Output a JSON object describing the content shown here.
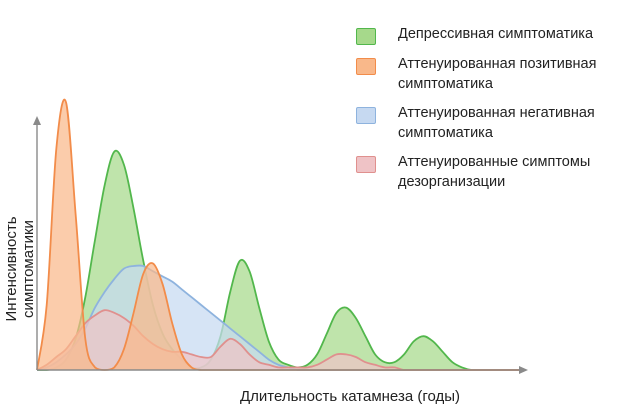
{
  "chart_data": {
    "type": "area",
    "xlabel": "Длительность катамнеза (годы)",
    "ylabel": "Интенсивность симптоматики",
    "xlim": [
      0,
      100
    ],
    "ylim": [
      0,
      100
    ],
    "legend_position": "top-right",
    "x": [
      0,
      2,
      4,
      6,
      8,
      10,
      12,
      14,
      16,
      18,
      20,
      22,
      24,
      26,
      28,
      30,
      32,
      34,
      36,
      38,
      40,
      42,
      44,
      46,
      48,
      50,
      52,
      54,
      56,
      58,
      60,
      62,
      64,
      66,
      68,
      70,
      72,
      74,
      76,
      78,
      80,
      82,
      84,
      86,
      88,
      90,
      92,
      94,
      96,
      98,
      100
    ],
    "series": [
      {
        "name": "Депрессивная симптоматика",
        "color": "#52b74c",
        "fill": "#a6d98b",
        "values": [
          0,
          0,
          1,
          4,
          12,
          28,
          50,
          71,
          84,
          79,
          62,
          42,
          25,
          14,
          8,
          4,
          1,
          1,
          4,
          13,
          30,
          42,
          38,
          24,
          11,
          4,
          2,
          1,
          2,
          6,
          14,
          22,
          24,
          20,
          13,
          6,
          3,
          3,
          6,
          11,
          13,
          11,
          7,
          3,
          1,
          0,
          0,
          0,
          0,
          0,
          0
        ]
      },
      {
        "name": "Аттенуированная позитивная симптоматика",
        "color": "#f28c4a",
        "fill": "#f9b88a",
        "values": [
          0,
          25,
          85,
          103,
          60,
          12,
          1,
          0,
          1,
          8,
          22,
          37,
          41,
          33,
          18,
          6,
          1,
          0,
          0,
          0,
          0,
          0,
          0,
          0,
          0,
          0,
          0,
          0,
          0,
          0,
          0,
          0,
          0,
          0,
          0,
          0,
          0,
          0,
          0,
          0,
          0,
          0,
          0,
          0,
          0,
          0,
          0,
          0,
          0,
          0,
          0
        ]
      },
      {
        "name": "Аттенуированная негативная симптоматика",
        "color": "#8eb3de",
        "fill": "#c6d9f1",
        "values": [
          0,
          1,
          3,
          6,
          10,
          16,
          24,
          30,
          35,
          39,
          40,
          40,
          38,
          36,
          34,
          31,
          28,
          25,
          22,
          19,
          16,
          13,
          10,
          7,
          4,
          2,
          1,
          0,
          0,
          0,
          0,
          0,
          0,
          0,
          0,
          0,
          0,
          0,
          0,
          0,
          0,
          0,
          0,
          0,
          0,
          0,
          0,
          0,
          0,
          0,
          0
        ]
      },
      {
        "name": "Аттенуированные симптомы дезорганизации",
        "color": "#e0908e",
        "fill": "#efc3c6",
        "values": [
          0,
          2,
          5,
          8,
          13,
          18,
          21,
          23,
          22,
          20,
          17,
          13,
          10,
          8,
          7,
          7,
          6,
          5,
          5,
          9,
          12,
          10,
          6,
          3,
          2,
          1,
          1,
          1,
          1,
          2,
          4,
          6,
          6,
          5,
          3,
          2,
          1,
          1,
          0,
          0,
          0,
          0,
          0,
          0,
          0,
          0,
          0,
          0,
          0,
          0,
          0
        ]
      }
    ]
  }
}
